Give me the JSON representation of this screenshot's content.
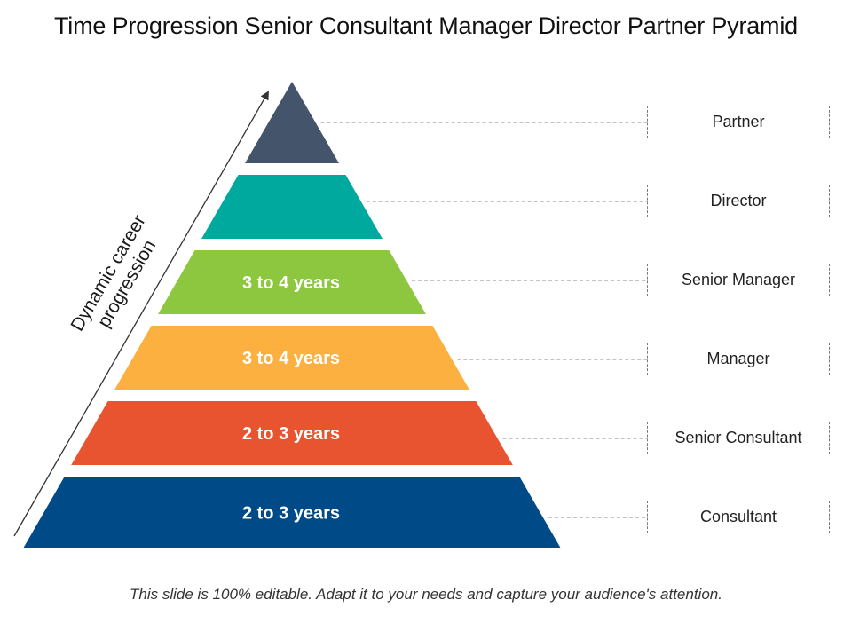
{
  "title": "Time Progression Senior Consultant Manager Director Partner Pyramid",
  "axis_label": {
    "line1": "Dynamic career",
    "line2": "progression"
  },
  "levels": [
    {
      "role": "Partner",
      "years": "",
      "color": "#44546a"
    },
    {
      "role": "Director",
      "years": "",
      "color": "#00a99d"
    },
    {
      "role": "Senior Manager",
      "years": "3 to 4 years",
      "color": "#8dc63f"
    },
    {
      "role": "Manager",
      "years": "3 to 4 years",
      "color": "#fbb040"
    },
    {
      "role": "Senior Consultant",
      "years": "2 to 3 years",
      "color": "#e8542f"
    },
    {
      "role": "Consultant",
      "years": "2 to 3 years",
      "color": "#004b87"
    }
  ],
  "footer": "This slide is 100% editable. Adapt it to your needs and capture your audience's attention."
}
